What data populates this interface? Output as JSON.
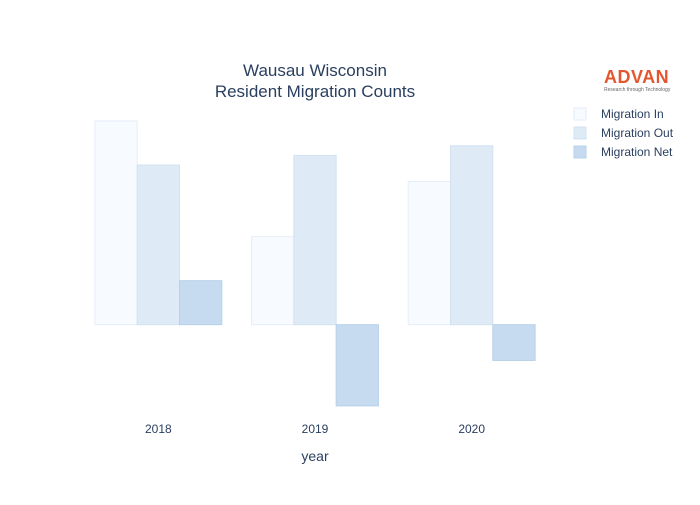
{
  "chart_data": {
    "type": "bar",
    "title": [
      "Wausau Wisconsin",
      "Resident Migration Counts"
    ],
    "xlabel": "year",
    "ylabel": "",
    "categories": [
      "2018",
      "2019",
      "2020"
    ],
    "series": [
      {
        "name": "Migration In",
        "values": [
          1480,
          640,
          1040
        ],
        "color": "#f7fbff",
        "stroke": "#e6eef8"
      },
      {
        "name": "Migration Out",
        "values": [
          1160,
          1230,
          1300
        ],
        "color": "#deebf7",
        "stroke": "#d2e2f2"
      },
      {
        "name": "Migration Net",
        "values": [
          320,
          -590,
          -260
        ],
        "color": "#c6dbef",
        "stroke": "#b8d1ea"
      }
    ],
    "ylim": [
      -620,
      1560
    ],
    "legend_position": "top-right",
    "grid": false
  },
  "logo": {
    "name": "ADVAN",
    "tagline": "Research through Technology",
    "color": "#e4572e"
  }
}
